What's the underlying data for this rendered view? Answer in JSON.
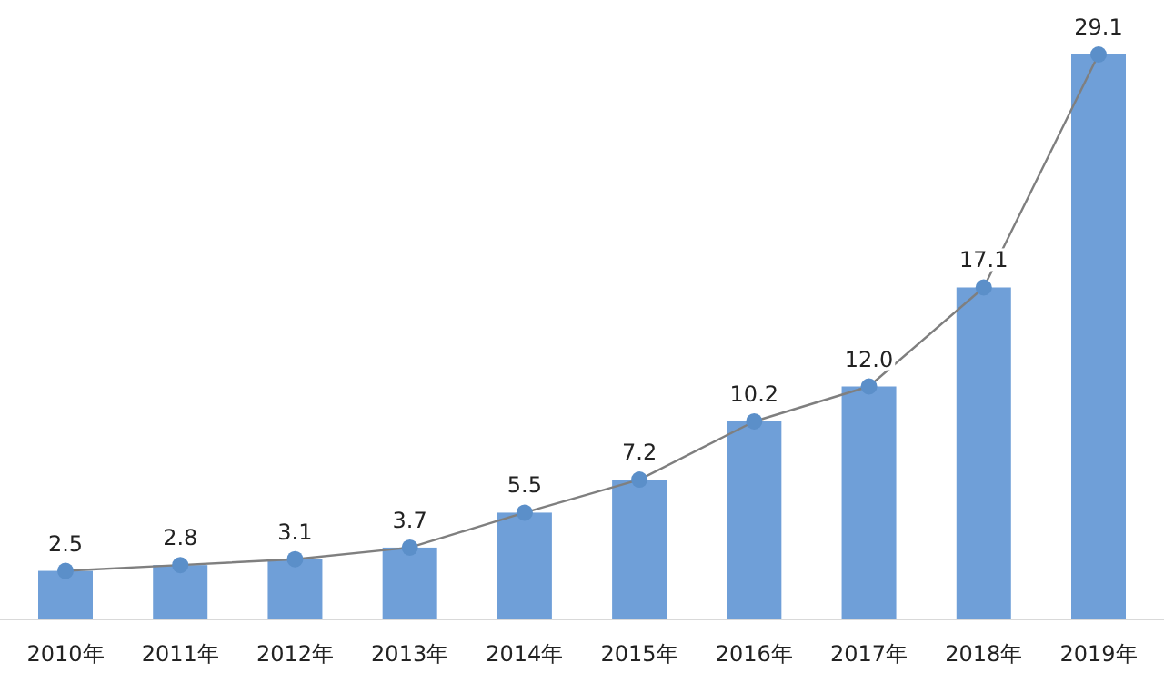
{
  "chart_data": {
    "type": "bar",
    "categories": [
      "2010年",
      "2011年",
      "2012年",
      "2013年",
      "2014年",
      "2015年",
      "2016年",
      "2017年",
      "2018年",
      "2019年"
    ],
    "series": [
      {
        "color": "#6f9fd8",
        "values": [
          2.5,
          2.8,
          3.1,
          3.7,
          5.5,
          7.2,
          10.2,
          12.0,
          17.1,
          29.1
        ]
      },
      {
        "type": "line",
        "color": "#7f7f7f",
        "marker": "circle",
        "values": [
          2.5,
          2.8,
          3.1,
          3.7,
          5.5,
          7.2,
          10.2,
          12.0,
          17.1,
          29.1
        ],
        "value_labels": [
          "2.5",
          "2.8",
          "3.1",
          "3.7",
          "5.5",
          "7.2",
          "10.2",
          "12.0",
          "17.1",
          "29.1"
        ]
      }
    ]
  }
}
